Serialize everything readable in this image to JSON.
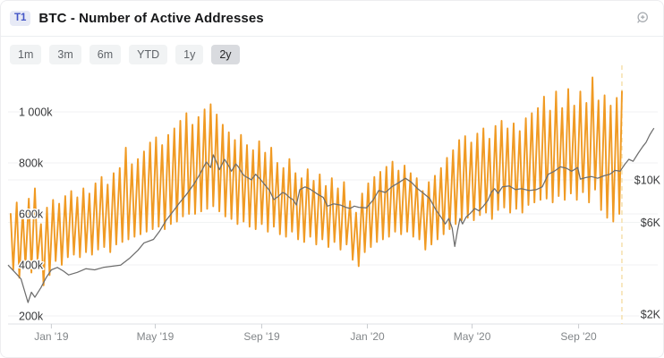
{
  "header": {
    "badge": "T1",
    "title": "BTC - Number of Active Addresses",
    "zoom_icon": "magnifier-plus-icon"
  },
  "toolbar": {
    "ranges": [
      "1m",
      "3m",
      "6m",
      "YTD",
      "1y",
      "2y"
    ],
    "selected": "2y"
  },
  "colors": {
    "addresses_line": "#f09a23",
    "price_line": "#6d6d6d",
    "dashed_marker": "#f6e0ac",
    "grid": "#f1f2f3",
    "axis_line": "#dfe1e4",
    "tick": "#c9ccd0",
    "left_axis_text": "#37383a",
    "x_axis_text": "#828689",
    "badge_bg": "#e7eaf6",
    "badge_text": "#4355c6",
    "button_bg": "#f1f3f4",
    "button_selected_bg": "#d9dbdf"
  },
  "chart_data": {
    "type": "line",
    "title": "BTC - Number of Active Addresses",
    "selected_range": "2y",
    "legend": "none",
    "grid": "on",
    "x_axis": {
      "unit": "days from left edge (~2y window ending Nov 2020)",
      "ticks": [
        {
          "label": "Jan '19",
          "day": 50
        },
        {
          "label": "May '19",
          "day": 170
        },
        {
          "label": "Sep '19",
          "day": 293
        },
        {
          "label": "Jan '20",
          "day": 415
        },
        {
          "label": "May '20",
          "day": 536
        },
        {
          "label": "Sep '20",
          "day": 659
        }
      ]
    },
    "left_axis": {
      "scale": "linear",
      "unit": "active addresses (thousands)",
      "tick_values_k": [
        200,
        400,
        600,
        800,
        1000
      ],
      "tick_labels": [
        "200k",
        "400k",
        "600k",
        "800k",
        "1 000k"
      ]
    },
    "right_axis": {
      "scale": "log",
      "unit": "price (thousand USD)",
      "tick_values_k": [
        2,
        6,
        10
      ],
      "tick_labels": [
        "$2K",
        "$6K",
        "$10K"
      ]
    },
    "current_marker_day": 709,
    "series": [
      {
        "name": "Active Addresses",
        "axis": "left",
        "unit": "thousands",
        "weekly_high_low": {
          "start_day": 0,
          "interval_days": 7,
          "high_day_offset": 3,
          "low_day_offset": 6,
          "values": [
            [
              600,
              380
            ],
            [
              645,
              350
            ],
            [
              615,
              395
            ],
            [
              660,
              370
            ],
            [
              700,
              420
            ],
            [
              560,
              320
            ],
            [
              625,
              360
            ],
            [
              655,
              415
            ],
            [
              640,
              400
            ],
            [
              670,
              430
            ],
            [
              690,
              440
            ],
            [
              665,
              430
            ],
            [
              700,
              450
            ],
            [
              680,
              440
            ],
            [
              720,
              460
            ],
            [
              745,
              470
            ],
            [
              715,
              450
            ],
            [
              760,
              480
            ],
            [
              780,
              490
            ],
            [
              860,
              500
            ],
            [
              795,
              510
            ],
            [
              815,
              520
            ],
            [
              845,
              530
            ],
            [
              880,
              540
            ],
            [
              900,
              550
            ],
            [
              870,
              540
            ],
            [
              910,
              560
            ],
            [
              935,
              570
            ],
            [
              965,
              590
            ],
            [
              995,
              600
            ],
            [
              950,
              600
            ],
            [
              980,
              610
            ],
            [
              1010,
              620
            ],
            [
              1030,
              630
            ],
            [
              990,
              610
            ],
            [
              950,
              590
            ],
            [
              920,
              580
            ],
            [
              890,
              560
            ],
            [
              910,
              570
            ],
            [
              870,
              550
            ],
            [
              850,
              540
            ],
            [
              885,
              560
            ],
            [
              840,
              530
            ],
            [
              860,
              550
            ],
            [
              800,
              520
            ],
            [
              780,
              510
            ],
            [
              815,
              530
            ],
            [
              760,
              500
            ],
            [
              740,
              490
            ],
            [
              775,
              510
            ],
            [
              730,
              480
            ],
            [
              755,
              500
            ],
            [
              710,
              470
            ],
            [
              740,
              490
            ],
            [
              700,
              460
            ],
            [
              725,
              480
            ],
            [
              650,
              420
            ],
            [
              605,
              395
            ],
            [
              680,
              450
            ],
            [
              720,
              470
            ],
            [
              745,
              490
            ],
            [
              765,
              500
            ],
            [
              785,
              510
            ],
            [
              805,
              530
            ],
            [
              770,
              520
            ],
            [
              790,
              530
            ],
            [
              760,
              510
            ],
            [
              740,
              500
            ],
            [
              690,
              460
            ],
            [
              725,
              480
            ],
            [
              750,
              500
            ],
            [
              780,
              520
            ],
            [
              820,
              540
            ],
            [
              850,
              560
            ],
            [
              890,
              575
            ],
            [
              905,
              585
            ],
            [
              880,
              575
            ],
            [
              915,
              595
            ],
            [
              935,
              605
            ],
            [
              895,
              580
            ],
            [
              945,
              615
            ],
            [
              965,
              625
            ],
            [
              935,
              605
            ],
            [
              955,
              620
            ],
            [
              925,
              605
            ],
            [
              975,
              635
            ],
            [
              995,
              645
            ],
            [
              1015,
              655
            ],
            [
              1060,
              660
            ],
            [
              1005,
              645
            ],
            [
              1080,
              670
            ],
            [
              1015,
              655
            ],
            [
              1090,
              680
            ],
            [
              1025,
              655
            ],
            [
              1080,
              685
            ],
            [
              1035,
              645
            ],
            [
              1135,
              695
            ],
            [
              1045,
              615
            ],
            [
              1065,
              585
            ],
            [
              1025,
              570
            ],
            [
              1055,
              600
            ]
          ]
        },
        "final_point": [
          709,
          1080
        ]
      },
      {
        "name": "BTC Price",
        "axis": "right",
        "unit": "$K",
        "points": [
          [
            0,
            3.6
          ],
          [
            8,
            3.3
          ],
          [
            15,
            3.05
          ],
          [
            23,
            2.3
          ],
          [
            27,
            2.6
          ],
          [
            31,
            2.45
          ],
          [
            38,
            2.75
          ],
          [
            44,
            3.1
          ],
          [
            50,
            3.4
          ],
          [
            57,
            3.5
          ],
          [
            64,
            3.35
          ],
          [
            70,
            3.2
          ],
          [
            80,
            3.3
          ],
          [
            90,
            3.45
          ],
          [
            100,
            3.4
          ],
          [
            110,
            3.5
          ],
          [
            120,
            3.55
          ],
          [
            130,
            3.6
          ],
          [
            140,
            3.9
          ],
          [
            150,
            4.3
          ],
          [
            157,
            4.7
          ],
          [
            168,
            4.9
          ],
          [
            175,
            5.4
          ],
          [
            183,
            6.2
          ],
          [
            191,
            6.9
          ],
          [
            198,
            7.6
          ],
          [
            206,
            8.4
          ],
          [
            214,
            9.4
          ],
          [
            221,
            10.6
          ],
          [
            229,
            12.4
          ],
          [
            234,
            11.6
          ],
          [
            237,
            13.5
          ],
          [
            241,
            12.3
          ],
          [
            244,
            11.3
          ],
          [
            250,
            12.8
          ],
          [
            255,
            11.8
          ],
          [
            258,
            11.1
          ],
          [
            263,
            12.1
          ],
          [
            266,
            11.7
          ],
          [
            270,
            10.9
          ],
          [
            273,
            10.5
          ],
          [
            278,
            10.2
          ],
          [
            281,
            10.0
          ],
          [
            286,
            10.7
          ],
          [
            292,
            10.0
          ],
          [
            297,
            9.4
          ],
          [
            302,
            8.8
          ],
          [
            307,
            7.9
          ],
          [
            312,
            8.2
          ],
          [
            317,
            8.6
          ],
          [
            320,
            8.5
          ],
          [
            325,
            8.1
          ],
          [
            329,
            7.9
          ],
          [
            333,
            7.4
          ],
          [
            337,
            8.9
          ],
          [
            343,
            9.2
          ],
          [
            348,
            9.0
          ],
          [
            353,
            8.7
          ],
          [
            358,
            8.4
          ],
          [
            364,
            8.1
          ],
          [
            369,
            7.3
          ],
          [
            376,
            7.5
          ],
          [
            384,
            7.4
          ],
          [
            390,
            7.2
          ],
          [
            395,
            7.1
          ],
          [
            400,
            7.3
          ],
          [
            405,
            7.2
          ],
          [
            414,
            7.15
          ],
          [
            422,
            7.9
          ],
          [
            428,
            8.8
          ],
          [
            436,
            8.6
          ],
          [
            443,
            9.2
          ],
          [
            450,
            9.6
          ],
          [
            459,
            10.2
          ],
          [
            466,
            9.7
          ],
          [
            473,
            9.0
          ],
          [
            480,
            8.5
          ],
          [
            487,
            8.0
          ],
          [
            494,
            7.0
          ],
          [
            500,
            6.4
          ],
          [
            505,
            5.9
          ],
          [
            509,
            6.3
          ],
          [
            513,
            5.6
          ],
          [
            516,
            4.5
          ],
          [
            519,
            5.4
          ],
          [
            522,
            6.3
          ],
          [
            525,
            5.9
          ],
          [
            529,
            6.4
          ],
          [
            534,
            6.7
          ],
          [
            539,
            7.1
          ],
          [
            544,
            6.9
          ],
          [
            549,
            7.3
          ],
          [
            554,
            7.8
          ],
          [
            558,
            8.6
          ],
          [
            562,
            9.0
          ],
          [
            566,
            8.5
          ],
          [
            571,
            9.2
          ],
          [
            579,
            9.3
          ],
          [
            586,
            8.9
          ],
          [
            593,
            9.0
          ],
          [
            602,
            8.8
          ],
          [
            610,
            8.9
          ],
          [
            617,
            9.2
          ],
          [
            624,
            10.7
          ],
          [
            631,
            11.1
          ],
          [
            638,
            11.7
          ],
          [
            645,
            11.5
          ],
          [
            651,
            11.1
          ],
          [
            658,
            11.6
          ],
          [
            661,
            10.1
          ],
          [
            668,
            10.3
          ],
          [
            674,
            10.4
          ],
          [
            681,
            10.2
          ],
          [
            688,
            10.5
          ],
          [
            695,
            10.7
          ],
          [
            701,
            11.2
          ],
          [
            707,
            11.1
          ],
          [
            712,
            12.0
          ],
          [
            717,
            12.8
          ],
          [
            722,
            12.5
          ],
          [
            728,
            13.8
          ],
          [
            733,
            14.9
          ],
          [
            737,
            15.7
          ],
          [
            741,
            17.1
          ],
          [
            744,
            18.0
          ],
          [
            746,
            18.6
          ]
        ]
      }
    ]
  }
}
